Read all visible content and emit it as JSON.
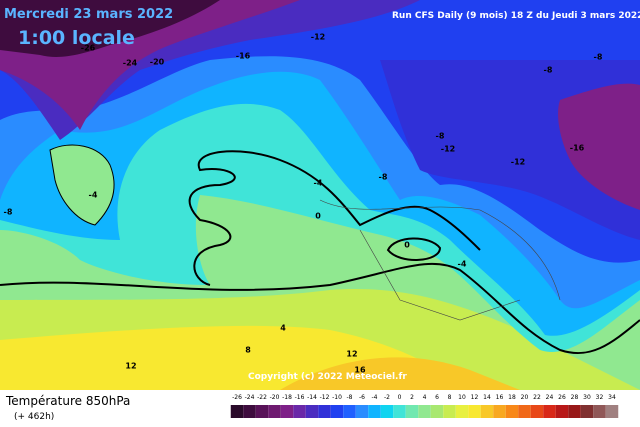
{
  "header": {
    "date": "Mercredi 23 mars 2022",
    "time": "1:00 locale",
    "run": "Run CFS Daily (9 mois) 18 Z du Jeudi 3 mars 2022"
  },
  "map": {
    "copyright": "Copyright (c) 2022 Meteociel.fr",
    "contour_labels": [
      -26,
      -24,
      -20,
      -16,
      -12,
      -8,
      -8,
      -8,
      -12,
      -12,
      -16,
      -4,
      -8,
      -4,
      -8,
      0,
      0,
      -4,
      4,
      8,
      12,
      16,
      12
    ]
  },
  "legend": {
    "title": "Température 850hPa",
    "subtitle": "(+ 462h)",
    "ticks": [
      -26,
      -24,
      -22,
      -20,
      -18,
      -16,
      -14,
      -12,
      -10,
      -8,
      -6,
      -4,
      -2,
      0,
      2,
      4,
      6,
      8,
      10,
      12,
      14,
      16,
      18,
      20,
      22,
      24,
      26,
      28,
      30,
      32,
      34
    ],
    "colors": [
      "#2a0a2a",
      "#3e0c3e",
      "#581258",
      "#6e1a70",
      "#7e2088",
      "#6a28a8",
      "#4a2cc0",
      "#3030d8",
      "#2040f0",
      "#2060ff",
      "#2a8cff",
      "#10b4ff",
      "#10d4f0",
      "#40e4d8",
      "#70e8b0",
      "#90e890",
      "#a8e870",
      "#c8ec50",
      "#e8f040",
      "#f8e830",
      "#f8c828",
      "#f8a820",
      "#f88818",
      "#f06818",
      "#e84818",
      "#d82818",
      "#b81818",
      "#981818",
      "#803030",
      "#905858",
      "#a08080"
    ]
  }
}
